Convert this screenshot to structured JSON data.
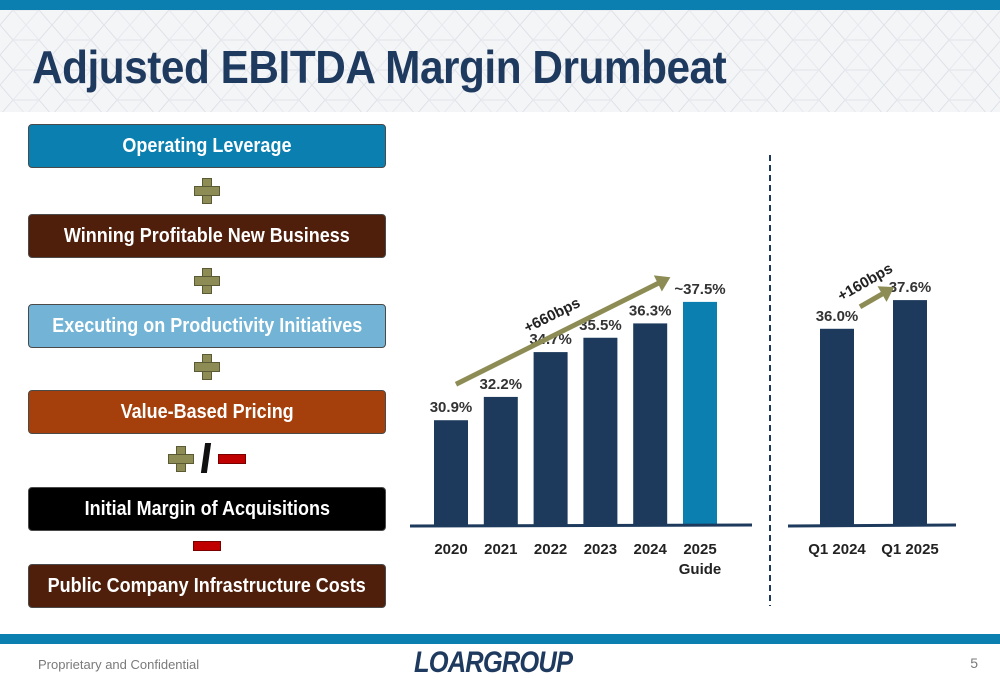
{
  "slide": {
    "title": "Adjusted EBITDA Margin Drumbeat",
    "footer_left": "Proprietary and Confidential",
    "logo_text": "LOARGROUP",
    "page_number": "5"
  },
  "drivers": [
    {
      "label": "Operating Leverage",
      "color": "#0a7fb0"
    },
    {
      "label": "Winning Profitable New Business",
      "color": "#4f1f0b"
    },
    {
      "label": "Executing on Productivity Initiatives",
      "color": "#73b4d6"
    },
    {
      "label": "Value-Based Pricing",
      "color": "#a5400c"
    },
    {
      "label": "Initial Margin of Acquisitions",
      "color": "#000000"
    },
    {
      "label": "Public Company Infrastructure Costs",
      "color": "#4f1f0b"
    }
  ],
  "chart_data": [
    {
      "type": "bar",
      "categories": [
        "2020",
        "2021",
        "2022",
        "2023",
        "2024",
        "2025\nGuide"
      ],
      "values": [
        30.9,
        32.2,
        34.7,
        35.5,
        36.3,
        37.5
      ],
      "data_labels": [
        "30.9%",
        "32.2%",
        "34.7%",
        "35.5%",
        "36.3%",
        "~37.5%"
      ],
      "bar_colors": [
        "#1d3a5c",
        "#1d3a5c",
        "#1d3a5c",
        "#1d3a5c",
        "#1d3a5c",
        "#0a7fb0"
      ],
      "annotation": "+660bps",
      "ylim": [
        25,
        39
      ]
    },
    {
      "type": "bar",
      "categories": [
        "Q1 2024",
        "Q1 2025"
      ],
      "values": [
        36.0,
        37.6
      ],
      "data_labels": [
        "36.0%",
        "37.6%"
      ],
      "bar_colors": [
        "#1d3a5c",
        "#1d3a5c"
      ],
      "annotation": "+160bps",
      "ylim": [
        25,
        39
      ]
    }
  ]
}
